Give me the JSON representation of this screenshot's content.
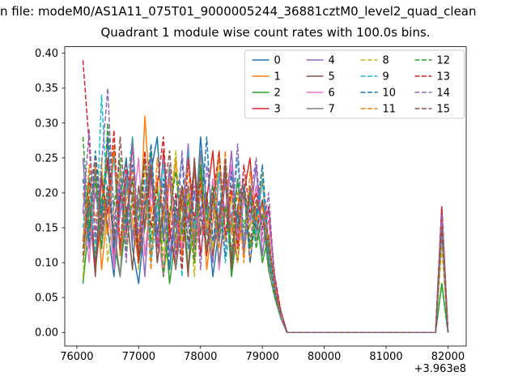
{
  "figure": {
    "top_title": "n file: modeM0/AS1A11_075T01_9000005244_36881cztM0_level2_quad_clean",
    "axes_title": "Quadrant 1 module wise count rates with 100.0s bins."
  },
  "chart_data": {
    "type": "line",
    "title": "Quadrant 1 module wise count rates with 100.0s bins.",
    "suptitle_visible": "n file: modeM0/AS1A11_075T01_9000005244_36881cztM0_level2_quad_clean",
    "xlabel": "",
    "ylabel": "",
    "x_offset_label": "+3.963e8",
    "xlim": [
      75805,
      82295
    ],
    "ylim": [
      -0.0195,
      0.4095
    ],
    "x_ticks": [
      "76000",
      "77000",
      "78000",
      "79000",
      "80000",
      "81000",
      "82000"
    ],
    "y_ticks": [
      "0.00",
      "0.05",
      "0.10",
      "0.15",
      "0.20",
      "0.25",
      "0.30",
      "0.35",
      "0.40"
    ],
    "x_start": 76100,
    "x_step": 100,
    "grid": false,
    "legend": {
      "loc": "upper right",
      "ncol": 4
    },
    "series": [
      {
        "label": "0",
        "color": "#1f77b4",
        "dash": false,
        "values": [
          0.12,
          0.18,
          0.1,
          0.22,
          0.15,
          0.08,
          0.19,
          0.25,
          0.12,
          0.07,
          0.16,
          0.23,
          0.28,
          0.14,
          0.09,
          0.17,
          0.11,
          0.21,
          0.13,
          0.28,
          0.18,
          0.08,
          0.15,
          0.24,
          0.1,
          0.17,
          0.12,
          0.2,
          0.16,
          0.22,
          0.11,
          0.06,
          0.02,
          0,
          0,
          0,
          0,
          0,
          0,
          0,
          0,
          0,
          0,
          0,
          0,
          0,
          0,
          0,
          0,
          0,
          0,
          0,
          0,
          0,
          0,
          0,
          0,
          0,
          0.17,
          0
        ]
      },
      {
        "label": "1",
        "color": "#ff7f0e",
        "dash": false,
        "values": [
          0.2,
          0.14,
          0.24,
          0.09,
          0.18,
          0.26,
          0.12,
          0.21,
          0.16,
          0.1,
          0.31,
          0.17,
          0.22,
          0.08,
          0.15,
          0.25,
          0.11,
          0.19,
          0.14,
          0.23,
          0.09,
          0.16,
          0.26,
          0.13,
          0.2,
          0.15,
          0.21,
          0.1,
          0.18,
          0.22,
          0.12,
          0.07,
          0.03,
          0,
          0,
          0,
          0,
          0,
          0,
          0,
          0,
          0,
          0,
          0,
          0,
          0,
          0,
          0,
          0,
          0,
          0,
          0,
          0,
          0,
          0,
          0,
          0,
          0,
          0.16,
          0
        ]
      },
      {
        "label": "2",
        "color": "#2ca02c",
        "dash": false,
        "values": [
          0.07,
          0.16,
          0.11,
          0.19,
          0.24,
          0.13,
          0.08,
          0.17,
          0.22,
          0.1,
          0.15,
          0.26,
          0.12,
          0.18,
          0.07,
          0.14,
          0.21,
          0.09,
          0.16,
          0.24,
          0.11,
          0.19,
          0.13,
          0.22,
          0.08,
          0.15,
          0.2,
          0.12,
          0.17,
          0.1,
          0.14,
          0.05,
          0.02,
          0,
          0,
          0,
          0,
          0,
          0,
          0,
          0,
          0,
          0,
          0,
          0,
          0,
          0,
          0,
          0,
          0,
          0,
          0,
          0,
          0,
          0,
          0,
          0,
          0,
          0.07,
          0
        ]
      },
      {
        "label": "3",
        "color": "#d62728",
        "dash": false,
        "values": [
          0.13,
          0.22,
          0.09,
          0.17,
          0.25,
          0.11,
          0.2,
          0.14,
          0.28,
          0.1,
          0.18,
          0.23,
          0.12,
          0.26,
          0.15,
          0.09,
          0.21,
          0.16,
          0.24,
          0.11,
          0.19,
          0.26,
          0.13,
          0.22,
          0.16,
          0.1,
          0.2,
          0.25,
          0.14,
          0.19,
          0.12,
          0.08,
          0.02,
          0,
          0,
          0,
          0,
          0,
          0,
          0,
          0,
          0,
          0,
          0,
          0,
          0,
          0,
          0,
          0,
          0,
          0,
          0,
          0,
          0,
          0,
          0,
          0,
          0,
          0.18,
          0
        ]
      },
      {
        "label": "4",
        "color": "#9467bd",
        "dash": false,
        "values": [
          0.25,
          0.12,
          0.2,
          0.15,
          0.28,
          0.1,
          0.17,
          0.23,
          0.13,
          0.19,
          0.08,
          0.22,
          0.16,
          0.25,
          0.11,
          0.18,
          0.14,
          0.27,
          0.12,
          0.2,
          0.15,
          0.1,
          0.23,
          0.17,
          0.26,
          0.13,
          0.21,
          0.16,
          0.24,
          0.11,
          0.18,
          0.07,
          0.03,
          0,
          0,
          0,
          0,
          0,
          0,
          0,
          0,
          0,
          0,
          0,
          0,
          0,
          0,
          0,
          0,
          0,
          0,
          0,
          0,
          0,
          0,
          0,
          0,
          0,
          0.18,
          0
        ]
      },
      {
        "label": "5",
        "color": "#8c564b",
        "dash": false,
        "values": [
          0.13,
          0.19,
          0.08,
          0.23,
          0.14,
          0.26,
          0.11,
          0.18,
          0.09,
          0.21,
          0.15,
          0.24,
          0.1,
          0.17,
          0.22,
          0.12,
          0.19,
          0.08,
          0.25,
          0.14,
          0.2,
          0.11,
          0.17,
          0.23,
          0.09,
          0.18,
          0.13,
          0.21,
          0.15,
          0.19,
          0.1,
          0.06,
          0.02,
          0,
          0,
          0,
          0,
          0,
          0,
          0,
          0,
          0,
          0,
          0,
          0,
          0,
          0,
          0,
          0,
          0,
          0,
          0,
          0,
          0,
          0,
          0,
          0,
          0,
          0.15,
          0
        ]
      },
      {
        "label": "6",
        "color": "#e377c2",
        "dash": false,
        "values": [
          0.18,
          0.1,
          0.22,
          0.14,
          0.19,
          0.09,
          0.24,
          0.13,
          0.17,
          0.25,
          0.11,
          0.2,
          0.15,
          0.08,
          0.23,
          0.16,
          0.12,
          0.21,
          0.1,
          0.18,
          0.14,
          0.22,
          0.09,
          0.17,
          0.24,
          0.12,
          0.19,
          0.15,
          0.21,
          0.13,
          0.16,
          0.08,
          0.03,
          0,
          0,
          0,
          0,
          0,
          0,
          0,
          0,
          0,
          0,
          0,
          0,
          0,
          0,
          0,
          0,
          0,
          0,
          0,
          0,
          0,
          0,
          0,
          0,
          0,
          0.16,
          0
        ]
      },
      {
        "label": "7",
        "color": "#7f7f7f",
        "dash": false,
        "values": [
          0.1,
          0.17,
          0.23,
          0.12,
          0.2,
          0.15,
          0.08,
          0.22,
          0.14,
          0.18,
          0.25,
          0.11,
          0.19,
          0.13,
          0.24,
          0.09,
          0.16,
          0.21,
          0.12,
          0.26,
          0.14,
          0.2,
          0.1,
          0.18,
          0.15,
          0.22,
          0.11,
          0.19,
          0.13,
          0.17,
          0.09,
          0.05,
          0.02,
          0,
          0,
          0,
          0,
          0,
          0,
          0,
          0,
          0,
          0,
          0,
          0,
          0,
          0,
          0,
          0,
          0,
          0,
          0,
          0,
          0,
          0,
          0,
          0,
          0,
          0.14,
          0
        ]
      },
      {
        "label": "8",
        "color": "#bcbd22",
        "dash": true,
        "values": [
          0.08,
          0.21,
          0.13,
          0.25,
          0.1,
          0.18,
          0.23,
          0.12,
          0.19,
          0.09,
          0.24,
          0.15,
          0.21,
          0.11,
          0.17,
          0.26,
          0.13,
          0.2,
          0.08,
          0.22,
          0.16,
          0.12,
          0.25,
          0.14,
          0.19,
          0.1,
          0.21,
          0.15,
          0.18,
          0.23,
          0.13,
          0.07,
          0.02,
          0,
          0,
          0,
          0,
          0,
          0,
          0,
          0,
          0,
          0,
          0,
          0,
          0,
          0,
          0,
          0,
          0,
          0,
          0,
          0,
          0,
          0,
          0,
          0,
          0,
          0.12,
          0
        ]
      },
      {
        "label": "9",
        "color": "#17becf",
        "dash": true,
        "values": [
          0.15,
          0.23,
          0.11,
          0.34,
          0.18,
          0.25,
          0.12,
          0.2,
          0.28,
          0.14,
          0.22,
          0.1,
          0.17,
          0.24,
          0.13,
          0.19,
          0.08,
          0.26,
          0.15,
          0.21,
          0.12,
          0.18,
          0.23,
          0.1,
          0.16,
          0.25,
          0.13,
          0.2,
          0.14,
          0.22,
          0.11,
          0.06,
          0.03,
          0,
          0,
          0,
          0,
          0,
          0,
          0,
          0,
          0,
          0,
          0,
          0,
          0,
          0,
          0,
          0,
          0,
          0,
          0,
          0,
          0,
          0,
          0,
          0,
          0,
          0.15,
          0
        ]
      },
      {
        "label": "10",
        "color": "#1f77b4",
        "dash": true,
        "values": [
          0.22,
          0.13,
          0.26,
          0.17,
          0.28,
          0.12,
          0.21,
          0.15,
          0.24,
          0.1,
          0.19,
          0.27,
          0.14,
          0.22,
          0.09,
          0.18,
          0.25,
          0.12,
          0.2,
          0.16,
          0.28,
          0.13,
          0.19,
          0.11,
          0.23,
          0.15,
          0.21,
          0.1,
          0.17,
          0.24,
          0.12,
          0.08,
          0.02,
          0,
          0,
          0,
          0,
          0,
          0,
          0,
          0,
          0,
          0,
          0,
          0,
          0,
          0,
          0,
          0,
          0,
          0,
          0,
          0,
          0,
          0,
          0,
          0,
          0,
          0.17,
          0
        ]
      },
      {
        "label": "11",
        "color": "#ff7f0e",
        "dash": true,
        "values": [
          0.12,
          0.24,
          0.16,
          0.21,
          0.14,
          0.27,
          0.11,
          0.19,
          0.23,
          0.13,
          0.2,
          0.09,
          0.25,
          0.16,
          0.22,
          0.12,
          0.18,
          0.24,
          0.1,
          0.21,
          0.15,
          0.19,
          0.12,
          0.26,
          0.14,
          0.2,
          0.1,
          0.23,
          0.16,
          0.18,
          0.13,
          0.07,
          0.03,
          0,
          0,
          0,
          0,
          0,
          0,
          0,
          0,
          0,
          0,
          0,
          0,
          0,
          0,
          0,
          0,
          0,
          0,
          0,
          0,
          0,
          0,
          0,
          0,
          0,
          0.16,
          0
        ]
      },
      {
        "label": "12",
        "color": "#2ca02c",
        "dash": true,
        "values": [
          0.28,
          0.15,
          0.22,
          0.12,
          0.3,
          0.18,
          0.25,
          0.11,
          0.2,
          0.16,
          0.26,
          0.13,
          0.21,
          0.08,
          0.17,
          0.23,
          0.14,
          0.19,
          0.1,
          0.24,
          0.16,
          0.21,
          0.13,
          0.18,
          0.11,
          0.22,
          0.15,
          0.2,
          0.12,
          0.17,
          0.09,
          0.05,
          0.02,
          0,
          0,
          0,
          0,
          0,
          0,
          0,
          0,
          0,
          0,
          0,
          0,
          0,
          0,
          0,
          0,
          0,
          0,
          0,
          0,
          0,
          0,
          0,
          0,
          0,
          0.07,
          0
        ]
      },
      {
        "label": "13",
        "color": "#d62728",
        "dash": true,
        "values": [
          0.39,
          0.27,
          0.14,
          0.22,
          0.17,
          0.29,
          0.12,
          0.24,
          0.19,
          0.1,
          0.26,
          0.15,
          0.21,
          0.28,
          0.13,
          0.2,
          0.09,
          0.25,
          0.16,
          0.22,
          0.11,
          0.19,
          0.26,
          0.14,
          0.21,
          0.12,
          0.24,
          0.17,
          0.2,
          0.15,
          0.18,
          0.08,
          0.03,
          0,
          0,
          0,
          0,
          0,
          0,
          0,
          0,
          0,
          0,
          0,
          0,
          0,
          0,
          0,
          0,
          0,
          0,
          0,
          0,
          0,
          0,
          0,
          0,
          0,
          0.18,
          0
        ]
      },
      {
        "label": "14",
        "color": "#9467bd",
        "dash": true,
        "values": [
          0.17,
          0.29,
          0.13,
          0.24,
          0.35,
          0.16,
          0.22,
          0.1,
          0.27,
          0.14,
          0.2,
          0.25,
          0.12,
          0.18,
          0.23,
          0.11,
          0.26,
          0.15,
          0.21,
          0.09,
          0.24,
          0.17,
          0.13,
          0.22,
          0.16,
          0.27,
          0.12,
          0.19,
          0.25,
          0.14,
          0.2,
          0.07,
          0.02,
          0,
          0,
          0,
          0,
          0,
          0,
          0,
          0,
          0,
          0,
          0,
          0,
          0,
          0,
          0,
          0,
          0,
          0,
          0,
          0,
          0,
          0,
          0,
          0,
          0,
          0.17,
          0
        ]
      },
      {
        "label": "15",
        "color": "#8c564b",
        "dash": true,
        "values": [
          0.11,
          0.2,
          0.25,
          0.14,
          0.21,
          0.13,
          0.28,
          0.17,
          0.22,
          0.12,
          0.18,
          0.24,
          0.1,
          0.19,
          0.26,
          0.15,
          0.21,
          0.13,
          0.23,
          0.17,
          0.12,
          0.2,
          0.15,
          0.25,
          0.11,
          0.18,
          0.22,
          0.13,
          0.19,
          0.16,
          0.14,
          0.06,
          0.03,
          0,
          0,
          0,
          0,
          0,
          0,
          0,
          0,
          0,
          0,
          0,
          0,
          0,
          0,
          0,
          0,
          0,
          0,
          0,
          0,
          0,
          0,
          0,
          0,
          0,
          0.15,
          0
        ]
      }
    ]
  }
}
